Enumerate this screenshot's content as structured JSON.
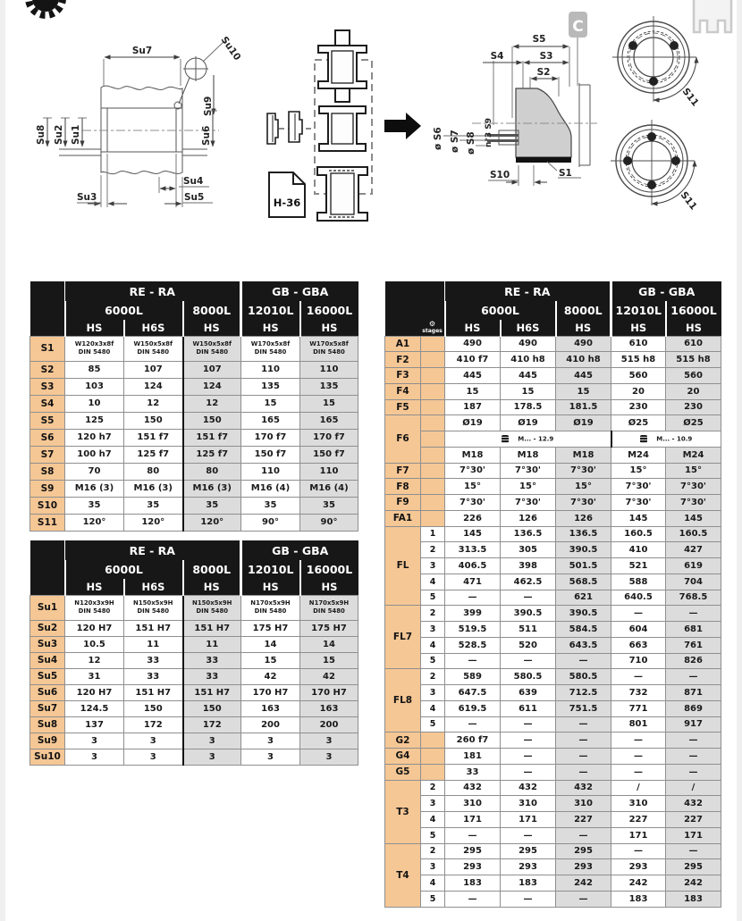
{
  "colors": {
    "header_bg": "#171717",
    "row_label_bg": "#f5c795",
    "shaded_col_bg": "#dcdcdc",
    "grid_border": "#8f8f8f",
    "accent_black": "#111111"
  },
  "icons": {
    "stages_gear": "⚙"
  },
  "drawings": {
    "shaft_section": {
      "dim_labels": {
        "su1": "Su1",
        "su2": "Su2",
        "su3": "Su3",
        "su4": "Su4",
        "su5": "Su5",
        "su6": "Su6",
        "su7": "Su7",
        "su8": "Su8",
        "su9": "Su9",
        "su10": "Su10"
      }
    },
    "coupling_kit": {
      "document_label": "H-36"
    },
    "flange_section": {
      "corner_badge": "C",
      "dim_labels": {
        "s1": "S1",
        "s2": "S2",
        "s3": "S3",
        "s4": "S4",
        "s5": "S5",
        "s6": "ø S6",
        "s7": "ø S7",
        "s8": "ø S8",
        "s9": "n°3 S9",
        "s10": "S10"
      }
    },
    "bolt_patterns": {
      "top_dim_label": "S11",
      "bottom_dim_label": "S11"
    }
  },
  "tables": {
    "header": {
      "groups": [
        "RE - RA",
        "GB - GBA"
      ],
      "sizes": [
        "6000L",
        "8000L",
        "12010L",
        "16000L"
      ],
      "versions": [
        "HS",
        "H6S",
        "HS",
        "HS",
        "HS"
      ]
    },
    "s_table": {
      "rows": [
        {
          "label": "S1",
          "values": [
            "W120x3x8f\nDIN 5480",
            "W150x5x8f\nDIN 5480",
            "W150x5x8f\nDIN 5480",
            "W170x5x8f\nDIN 5480",
            "W170x5x8f\nDIN 5480"
          ]
        },
        {
          "label": "S2",
          "values": [
            "85",
            "107",
            "107",
            "110",
            "110"
          ]
        },
        {
          "label": "S3",
          "values": [
            "103",
            "124",
            "124",
            "135",
            "135"
          ]
        },
        {
          "label": "S4",
          "values": [
            "10",
            "12",
            "12",
            "15",
            "15"
          ]
        },
        {
          "label": "S5",
          "values": [
            "125",
            "150",
            "150",
            "165",
            "165"
          ]
        },
        {
          "label": "S6",
          "values": [
            "120 h7",
            "151 f7",
            "151 f7",
            "170 f7",
            "170 f7"
          ]
        },
        {
          "label": "S7",
          "values": [
            "100 h7",
            "125 f7",
            "125 f7",
            "150 f7",
            "150 f7"
          ]
        },
        {
          "label": "S8",
          "values": [
            "70",
            "80",
            "80",
            "110",
            "110"
          ]
        },
        {
          "label": "S9",
          "values": [
            "M16 (3)",
            "M16 (3)",
            "M16 (3)",
            "M16 (4)",
            "M16 (4)"
          ]
        },
        {
          "label": "S10",
          "values": [
            "35",
            "35",
            "35",
            "35",
            "35"
          ]
        },
        {
          "label": "S11",
          "values": [
            "120°",
            "120°",
            "120°",
            "90°",
            "90°"
          ]
        }
      ]
    },
    "su_table": {
      "rows": [
        {
          "label": "Su1",
          "values": [
            "N120x3x9H\nDIN 5480",
            "N150x5x9H\nDIN 5480",
            "N150x5x9H\nDIN 5480",
            "N170x5x9H\nDIN 5480",
            "N170x5x9H\nDIN 5480"
          ]
        },
        {
          "label": "Su2",
          "values": [
            "120 H7",
            "151 H7",
            "151 H7",
            "175 H7",
            "175 H7"
          ]
        },
        {
          "label": "Su3",
          "values": [
            "10.5",
            "11",
            "11",
            "14",
            "14"
          ]
        },
        {
          "label": "Su4",
          "values": [
            "12",
            "33",
            "33",
            "15",
            "15"
          ]
        },
        {
          "label": "Su5",
          "values": [
            "31",
            "33",
            "33",
            "42",
            "42"
          ]
        },
        {
          "label": "Su6",
          "values": [
            "120 H7",
            "151 H7",
            "151 H7",
            "170 H7",
            "170 H7"
          ]
        },
        {
          "label": "Su7",
          "values": [
            "124.5",
            "150",
            "150",
            "163",
            "163"
          ]
        },
        {
          "label": "Su8",
          "values": [
            "137",
            "172",
            "172",
            "200",
            "200"
          ]
        },
        {
          "label": "Su9",
          "values": [
            "3",
            "3",
            "3",
            "3",
            "3"
          ]
        },
        {
          "label": "Su10",
          "values": [
            "3",
            "3",
            "3",
            "3",
            "3"
          ]
        }
      ]
    },
    "main_table": {
      "stages_label": "stages",
      "groups": [
        {
          "label": "A1",
          "rows": [
            {
              "stage": "",
              "cells": [
                "490",
                "490",
                "490",
                "610",
                "610"
              ]
            }
          ]
        },
        {
          "label": "F2",
          "rows": [
            {
              "stage": "",
              "cells": [
                "410 f7",
                "410 h8",
                "410 h8",
                "515 h8",
                "515 h8"
              ]
            }
          ]
        },
        {
          "label": "F3",
          "rows": [
            {
              "stage": "",
              "cells": [
                "445",
                "445",
                "445",
                "560",
                "560"
              ]
            }
          ]
        },
        {
          "label": "F4",
          "rows": [
            {
              "stage": "",
              "cells": [
                "15",
                "15",
                "15",
                "20",
                "20"
              ]
            }
          ]
        },
        {
          "label": "F5",
          "rows": [
            {
              "stage": "",
              "cells": [
                "187",
                "178.5",
                "181.5",
                "230",
                "230"
              ]
            }
          ]
        },
        {
          "label": "F6",
          "rows": [
            {
              "stage": "",
              "cells": [
                "Ø19",
                "Ø19",
                "Ø19",
                "Ø25",
                "Ø25"
              ]
            },
            {
              "stage": "",
              "merged": [
                {
                  "icon": "bolt-class-icon",
                  "text": "M... - 12.9",
                  "span": 3
                },
                {
                  "icon": "bolt-class-icon",
                  "text": "M... - 10.9",
                  "span": 2
                }
              ]
            },
            {
              "stage": "",
              "cells": [
                "M18",
                "M18",
                "M18",
                "M24",
                "M24"
              ]
            }
          ]
        },
        {
          "label": "F7",
          "rows": [
            {
              "stage": "",
              "cells": [
                "7°30'",
                "7°30'",
                "7°30'",
                "15°",
                "15°"
              ]
            }
          ]
        },
        {
          "label": "F8",
          "rows": [
            {
              "stage": "",
              "cells": [
                "15°",
                "15°",
                "15°",
                "7°30'",
                "7°30'"
              ]
            }
          ]
        },
        {
          "label": "F9",
          "rows": [
            {
              "stage": "",
              "cells": [
                "7°30'",
                "7°30'",
                "7°30'",
                "7°30'",
                "7°30'"
              ]
            }
          ]
        },
        {
          "label": "FA1",
          "rows": [
            {
              "stage": "",
              "cells": [
                "226",
                "126",
                "126",
                "145",
                "145"
              ]
            }
          ]
        },
        {
          "label": "FL",
          "rows": [
            {
              "stage": "1",
              "cells": [
                "145",
                "136.5",
                "136.5",
                "160.5",
                "160.5"
              ]
            },
            {
              "stage": "2",
              "cells": [
                "313.5",
                "305",
                "390.5",
                "410",
                "427"
              ]
            },
            {
              "stage": "3",
              "cells": [
                "406.5",
                "398",
                "501.5",
                "521",
                "619"
              ]
            },
            {
              "stage": "4",
              "cells": [
                "471",
                "462.5",
                "568.5",
                "588",
                "704"
              ]
            },
            {
              "stage": "5",
              "cells": [
                "—",
                "—",
                "621",
                "640.5",
                "768.5"
              ]
            }
          ]
        },
        {
          "label": "FL7",
          "rows": [
            {
              "stage": "2",
              "cells": [
                "399",
                "390.5",
                "390.5",
                "—",
                "—"
              ]
            },
            {
              "stage": "3",
              "cells": [
                "519.5",
                "511",
                "584.5",
                "604",
                "681"
              ]
            },
            {
              "stage": "4",
              "cells": [
                "528.5",
                "520",
                "643.5",
                "663",
                "761"
              ]
            },
            {
              "stage": "5",
              "cells": [
                "—",
                "—",
                "—",
                "710",
                "826"
              ]
            }
          ]
        },
        {
          "label": "FL8",
          "rows": [
            {
              "stage": "2",
              "cells": [
                "589",
                "580.5",
                "580.5",
                "—",
                "—"
              ]
            },
            {
              "stage": "3",
              "cells": [
                "647.5",
                "639",
                "712.5",
                "732",
                "871"
              ]
            },
            {
              "stage": "4",
              "cells": [
                "619.5",
                "611",
                "751.5",
                "771",
                "869"
              ]
            },
            {
              "stage": "5",
              "cells": [
                "—",
                "—",
                "—",
                "801",
                "917"
              ]
            }
          ]
        },
        {
          "label": "G2",
          "rows": [
            {
              "stage": "",
              "cells": [
                "260 f7",
                "—",
                "—",
                "—",
                "—"
              ]
            }
          ]
        },
        {
          "label": "G4",
          "rows": [
            {
              "stage": "",
              "cells": [
                "181",
                "—",
                "—",
                "—",
                "—"
              ]
            }
          ]
        },
        {
          "label": "G5",
          "rows": [
            {
              "stage": "",
              "cells": [
                "33",
                "—",
                "—",
                "—",
                "—"
              ]
            }
          ]
        },
        {
          "label": "T3",
          "rows": [
            {
              "stage": "2",
              "cells": [
                "432",
                "432",
                "432",
                "/",
                "/"
              ]
            },
            {
              "stage": "3",
              "cells": [
                "310",
                "310",
                "310",
                "310",
                "432"
              ]
            },
            {
              "stage": "4",
              "cells": [
                "171",
                "171",
                "227",
                "227",
                "227"
              ]
            },
            {
              "stage": "5",
              "cells": [
                "—",
                "—",
                "—",
                "171",
                "171"
              ]
            }
          ]
        },
        {
          "label": "T4",
          "rows": [
            {
              "stage": "2",
              "cells": [
                "295",
                "295",
                "295",
                "—",
                "—"
              ]
            },
            {
              "stage": "3",
              "cells": [
                "293",
                "293",
                "293",
                "293",
                "295"
              ]
            },
            {
              "stage": "4",
              "cells": [
                "183",
                "183",
                "242",
                "242",
                "242"
              ]
            },
            {
              "stage": "5",
              "cells": [
                "—",
                "—",
                "—",
                "183",
                "183"
              ]
            }
          ]
        }
      ]
    }
  }
}
